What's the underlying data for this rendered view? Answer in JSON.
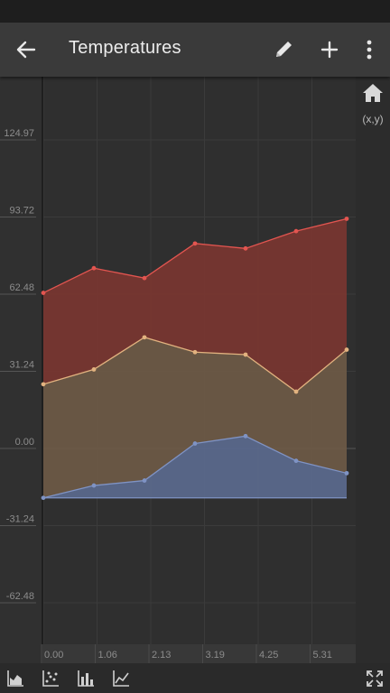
{
  "app_bar": {
    "title": "Temperatures",
    "back_icon": "arrow-left-icon",
    "edit_icon": "pencil-icon",
    "add_icon": "plus-icon",
    "more_icon": "more-vertical-icon"
  },
  "side_tools": {
    "home_icon": "home-icon",
    "xy_label": "(x,y)"
  },
  "bottom_bar": {
    "icons": [
      "area-chart-icon",
      "scatter-chart-icon",
      "bar-chart-icon",
      "line-chart-icon",
      "fullscreen-icon"
    ]
  },
  "chart_data": {
    "type": "area",
    "stacked": true,
    "x": [
      0.0,
      1.0,
      2.0,
      3.0,
      4.0,
      5.0,
      6.0
    ],
    "x_ticks": [
      "0.00",
      "1.06",
      "2.13",
      "3.19",
      "4.25",
      "5.31"
    ],
    "y_ticks": [
      "124.97",
      "93.72",
      "62.48",
      "31.24",
      "0.00",
      "-31.24",
      "-62.48"
    ],
    "ylim": [
      -62.48,
      124.97
    ],
    "grid": true,
    "baseline": -20,
    "series": [
      {
        "color": "#5b6a8e",
        "line_color": "#7f93c4",
        "totals": [
          -20,
          -15,
          -13,
          2,
          5,
          -5,
          -10
        ]
      },
      {
        "color": "#6e5a46",
        "line_color": "#e2b27f",
        "totals": [
          26,
          32,
          45,
          39,
          38,
          23,
          40
        ]
      },
      {
        "color": "#7a3631",
        "line_color": "#e35550",
        "totals": [
          63,
          73,
          69,
          83,
          81,
          88,
          93
        ]
      }
    ]
  }
}
